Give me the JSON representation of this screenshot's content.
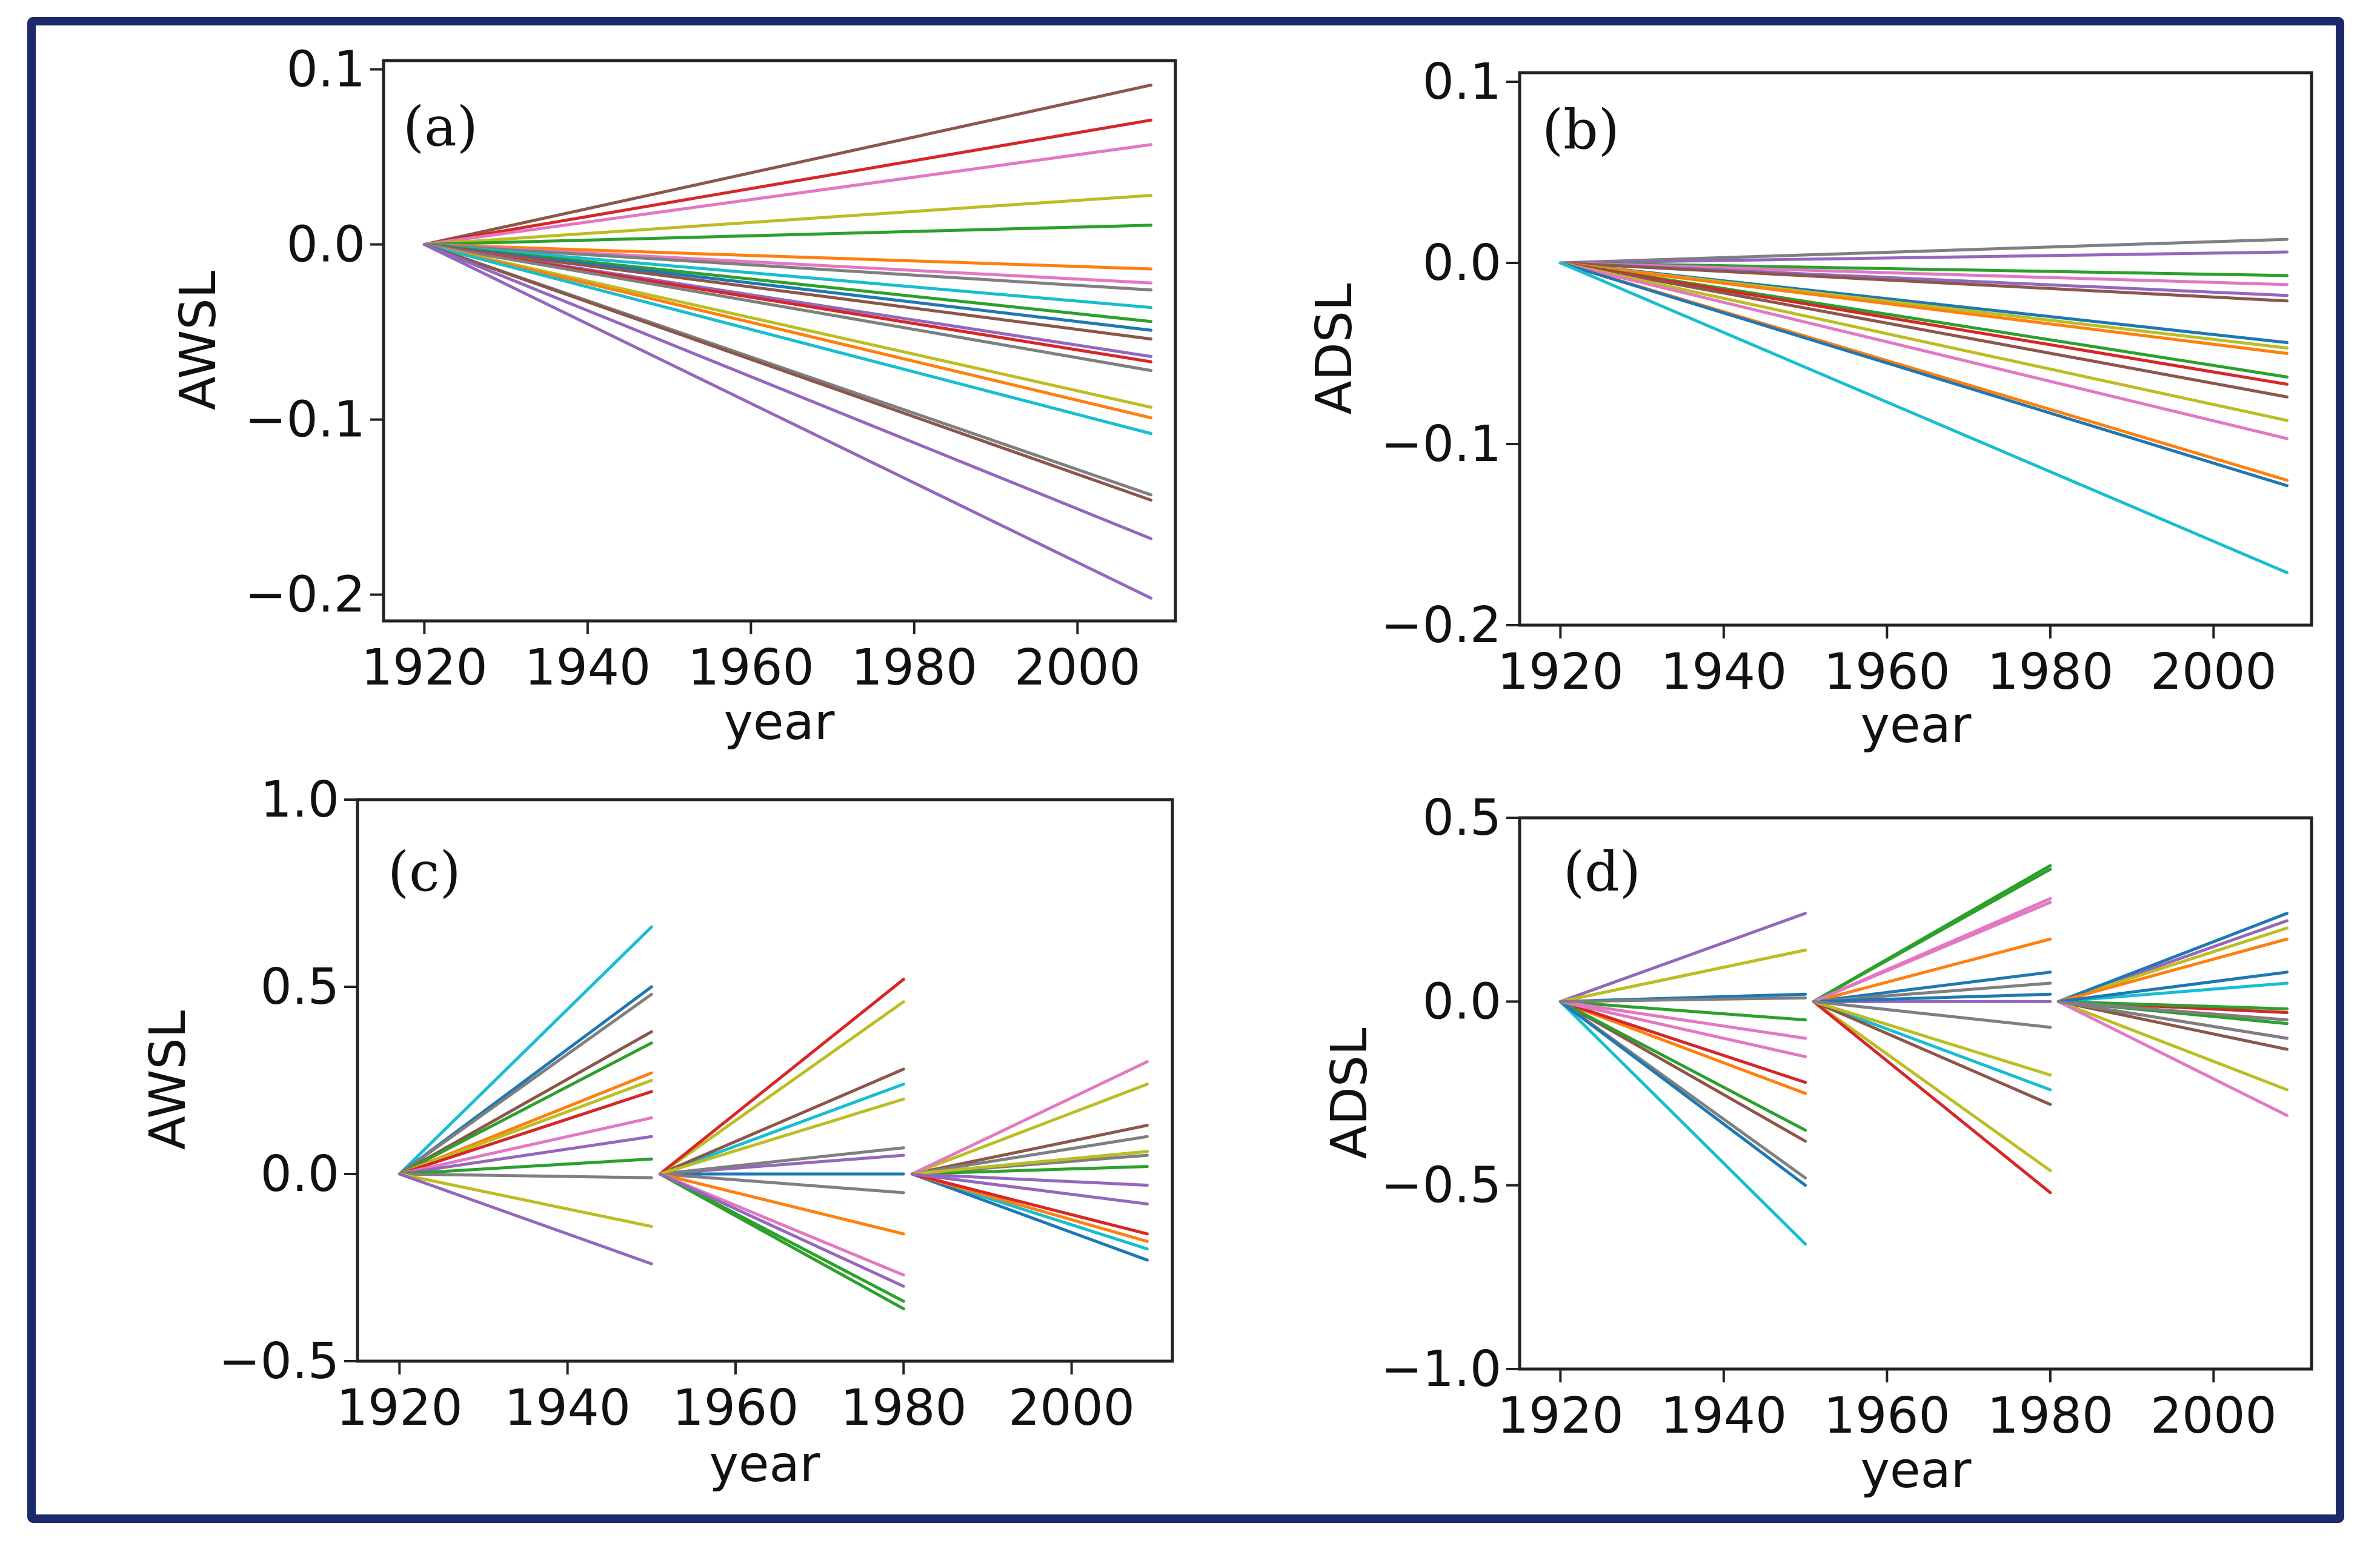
{
  "figure": {
    "frame_color": "#1c2a6b",
    "palette": [
      "#1f77b4",
      "#ff7f0e",
      "#2ca02c",
      "#d62728",
      "#9467bd",
      "#8c564b",
      "#e377c2",
      "#7f7f7f",
      "#bcbd22",
      "#17becf"
    ]
  },
  "chart_data": [
    {
      "id": "a",
      "type": "line",
      "panel_label": "(a)",
      "xlabel": "year",
      "ylabel": "AWSL",
      "xlim": [
        1915,
        2012
      ],
      "ylim": [
        -0.215,
        0.105
      ],
      "xticks": [
        1920,
        1940,
        1960,
        1980,
        2000
      ],
      "xtick_labels": [
        "1920",
        "1940",
        "1960",
        "1980",
        "2000"
      ],
      "yticks": [
        0.1,
        0.0,
        -0.1,
        -0.2
      ],
      "ytick_labels": [
        "0.1",
        "0.0",
        "−0.1",
        "−0.2"
      ],
      "segments": [
        [
          1920,
          2009
        ]
      ],
      "series": [
        {
          "color": "#8c564b",
          "values": [
            0.091
          ]
        },
        {
          "color": "#d62728",
          "values": [
            0.071
          ]
        },
        {
          "color": "#e377c2",
          "values": [
            0.057
          ]
        },
        {
          "color": "#bcbd22",
          "values": [
            0.028
          ]
        },
        {
          "color": "#2ca02c",
          "values": [
            0.011
          ]
        },
        {
          "color": "#ff7f0e",
          "values": [
            -0.014
          ]
        },
        {
          "color": "#e377c2",
          "values": [
            -0.022
          ]
        },
        {
          "color": "#7f7f7f",
          "values": [
            -0.026
          ]
        },
        {
          "color": "#17becf",
          "values": [
            -0.036
          ]
        },
        {
          "color": "#2ca02c",
          "values": [
            -0.044
          ]
        },
        {
          "color": "#1f77b4",
          "values": [
            -0.049
          ]
        },
        {
          "color": "#8c564b",
          "values": [
            -0.054
          ]
        },
        {
          "color": "#9467bd",
          "values": [
            -0.064
          ]
        },
        {
          "color": "#d62728",
          "values": [
            -0.067
          ]
        },
        {
          "color": "#7f7f7f",
          "values": [
            -0.072
          ]
        },
        {
          "color": "#bcbd22",
          "values": [
            -0.093
          ]
        },
        {
          "color": "#ff7f0e",
          "values": [
            -0.099
          ]
        },
        {
          "color": "#17becf",
          "values": [
            -0.108
          ]
        },
        {
          "color": "#7f7f7f",
          "values": [
            -0.143
          ]
        },
        {
          "color": "#8c564b",
          "values": [
            -0.146
          ]
        },
        {
          "color": "#9467bd",
          "values": [
            -0.168
          ]
        },
        {
          "color": "#9467bd",
          "values": [
            -0.202
          ]
        }
      ]
    },
    {
      "id": "b",
      "type": "line",
      "panel_label": "(b)",
      "xlabel": "year",
      "ylabel": "ADSL",
      "xlim": [
        1915,
        2012
      ],
      "ylim": [
        -0.2,
        0.105
      ],
      "xticks": [
        1920,
        1940,
        1960,
        1980,
        2000
      ],
      "xtick_labels": [
        "1920",
        "1940",
        "1960",
        "1980",
        "2000"
      ],
      "yticks": [
        0.1,
        0.0,
        -0.1,
        -0.2
      ],
      "ytick_labels": [
        "0.1",
        "0.0",
        "−0.1",
        "−0.2"
      ],
      "segments": [
        [
          1920,
          2009
        ]
      ],
      "series": [
        {
          "color": "#7f7f7f",
          "values": [
            0.013
          ]
        },
        {
          "color": "#9467bd",
          "values": [
            0.006
          ]
        },
        {
          "color": "#2ca02c",
          "values": [
            -0.007
          ]
        },
        {
          "color": "#e377c2",
          "values": [
            -0.012
          ]
        },
        {
          "color": "#9467bd",
          "values": [
            -0.018
          ]
        },
        {
          "color": "#8c564b",
          "values": [
            -0.021
          ]
        },
        {
          "color": "#1f77b4",
          "values": [
            -0.044
          ]
        },
        {
          "color": "#bcbd22",
          "values": [
            -0.047
          ]
        },
        {
          "color": "#ff7f0e",
          "values": [
            -0.05
          ]
        },
        {
          "color": "#2ca02c",
          "values": [
            -0.063
          ]
        },
        {
          "color": "#d62728",
          "values": [
            -0.067
          ]
        },
        {
          "color": "#8c564b",
          "values": [
            -0.074
          ]
        },
        {
          "color": "#bcbd22",
          "values": [
            -0.087
          ]
        },
        {
          "color": "#e377c2",
          "values": [
            -0.097
          ]
        },
        {
          "color": "#ff7f0e",
          "values": [
            -0.12
          ]
        },
        {
          "color": "#1f77b4",
          "values": [
            -0.123
          ]
        },
        {
          "color": "#17becf",
          "values": [
            -0.171
          ]
        }
      ]
    },
    {
      "id": "c",
      "type": "line",
      "panel_label": "(c)",
      "xlabel": "year",
      "ylabel": "AWSL",
      "xlim": [
        1915,
        2012
      ],
      "ylim": [
        -0.5,
        1.0
      ],
      "xticks": [
        1920,
        1940,
        1960,
        1980,
        2000
      ],
      "xtick_labels": [
        "1920",
        "1940",
        "1960",
        "1980",
        "2000"
      ],
      "yticks": [
        1.0,
        0.5,
        0.0,
        -0.5
      ],
      "ytick_labels": [
        "1.0",
        "0.5",
        "0.0",
        "−0.5"
      ],
      "segments": [
        [
          1920,
          1950
        ],
        [
          1951,
          1980
        ],
        [
          1981,
          2009
        ]
      ],
      "series": [
        {
          "color": "#17becf",
          "values": [
            0.66,
            0.24,
            -0.2
          ]
        },
        {
          "color": "#1f77b4",
          "values": [
            0.5,
            0.0,
            -0.23
          ]
        },
        {
          "color": "#7f7f7f",
          "values": [
            0.48,
            -0.05,
            0.05
          ]
        },
        {
          "color": "#8c564b",
          "values": [
            0.38,
            0.28,
            0.13
          ]
        },
        {
          "color": "#2ca02c",
          "values": [
            0.35,
            -0.36,
            0.02
          ]
        },
        {
          "color": "#ff7f0e",
          "values": [
            0.27,
            -0.16,
            -0.18
          ]
        },
        {
          "color": "#bcbd22",
          "values": [
            0.25,
            0.46,
            0.24
          ]
        },
        {
          "color": "#d62728",
          "values": [
            0.22,
            0.52,
            -0.16
          ]
        },
        {
          "color": "#e377c2",
          "values": [
            0.15,
            -0.27,
            0.3
          ]
        },
        {
          "color": "#9467bd",
          "values": [
            0.1,
            0.05,
            -0.03
          ]
        },
        {
          "color": "#2ca02c",
          "values": [
            0.04,
            -0.34,
            0.06
          ]
        },
        {
          "color": "#7f7f7f",
          "values": [
            -0.01,
            0.07,
            0.1
          ]
        },
        {
          "color": "#bcbd22",
          "values": [
            -0.14,
            0.2,
            0.06
          ]
        },
        {
          "color": "#9467bd",
          "values": [
            -0.24,
            -0.3,
            -0.08
          ]
        }
      ]
    },
    {
      "id": "d",
      "type": "line",
      "panel_label": "(d)",
      "xlabel": "year",
      "ylabel": "ADSL",
      "xlim": [
        1915,
        2012
      ],
      "ylim": [
        -1.0,
        0.5
      ],
      "xticks": [
        1920,
        1940,
        1960,
        1980,
        2000
      ],
      "xtick_labels": [
        "1920",
        "1940",
        "1960",
        "1980",
        "2000"
      ],
      "yticks": [
        0.5,
        0.0,
        -0.5,
        -1.0
      ],
      "ytick_labels": [
        "0.5",
        "0.0",
        "−0.5",
        "−1.0"
      ],
      "segments": [
        [
          1920,
          1950
        ],
        [
          1951,
          1980
        ],
        [
          1981,
          2009
        ]
      ],
      "series": [
        {
          "color": "#9467bd",
          "values": [
            0.24,
            0.0,
            0.22
          ]
        },
        {
          "color": "#bcbd22",
          "values": [
            0.14,
            -0.46,
            0.2
          ]
        },
        {
          "color": "#1f77b4",
          "values": [
            0.02,
            0.08,
            0.24
          ]
        },
        {
          "color": "#2ca02c",
          "values": [
            -0.05,
            0.37,
            -0.06
          ]
        },
        {
          "color": "#e377c2",
          "values": [
            -0.1,
            0.28,
            -0.1
          ]
        },
        {
          "color": "#ff7f0e",
          "values": [
            -0.25,
            0.17,
            0.17
          ]
        },
        {
          "color": "#d62728",
          "values": [
            -0.22,
            -0.52,
            -0.03
          ]
        },
        {
          "color": "#17becf",
          "values": [
            -0.66,
            -0.24,
            0.05
          ]
        },
        {
          "color": "#8c564b",
          "values": [
            -0.38,
            -0.28,
            -0.13
          ]
        },
        {
          "color": "#2ca02c",
          "values": [
            -0.35,
            0.36,
            -0.02
          ]
        },
        {
          "color": "#7f7f7f",
          "values": [
            -0.48,
            0.05,
            -0.05
          ]
        },
        {
          "color": "#1f77b4",
          "values": [
            -0.5,
            0.02,
            0.08
          ]
        },
        {
          "color": "#bcbd22",
          "values": [
            0.14,
            -0.2,
            -0.24
          ]
        },
        {
          "color": "#e377c2",
          "values": [
            -0.15,
            0.27,
            -0.31
          ]
        },
        {
          "color": "#7f7f7f",
          "values": [
            0.01,
            -0.07,
            -0.1
          ]
        }
      ]
    }
  ]
}
